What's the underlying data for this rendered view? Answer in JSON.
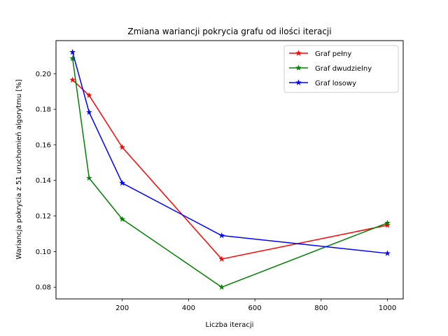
{
  "chart_data": {
    "type": "line",
    "title": "Zmiana wariancji pokrycia grafu od ilości iteracji",
    "xlabel": "Liczba iteracji",
    "ylabel": "Wariancja pokrycia z 51 uruchomień algorytmu [%]",
    "x": [
      50,
      100,
      200,
      500,
      1000
    ],
    "xlim": [
      0,
      1047.5
    ],
    "ylim": [
      0.0734,
      0.2186
    ],
    "xticks": [
      200,
      400,
      600,
      800,
      1000
    ],
    "yticks": [
      0.08,
      0.1,
      0.12,
      0.14,
      0.16,
      0.18,
      0.2
    ],
    "ytick_labels": [
      "0.08",
      "0.10",
      "0.12",
      "0.14",
      "0.16",
      "0.18",
      "0.20"
    ],
    "grid": false,
    "legend_position": "top-right",
    "series": [
      {
        "name": "Graf pełny",
        "color": "#ff0000",
        "marker": "star",
        "values": [
          0.1965,
          0.1878,
          0.1586,
          0.0958,
          0.1148
        ]
      },
      {
        "name": "Graf dwudzielny",
        "color": "#008000",
        "marker": "star",
        "values": [
          0.2085,
          0.1413,
          0.1182,
          0.08,
          0.1161
        ]
      },
      {
        "name": "Graf losowy",
        "color": "#0000ff",
        "marker": "star",
        "values": [
          0.2121,
          0.1783,
          0.1385,
          0.109,
          0.099
        ]
      }
    ]
  }
}
